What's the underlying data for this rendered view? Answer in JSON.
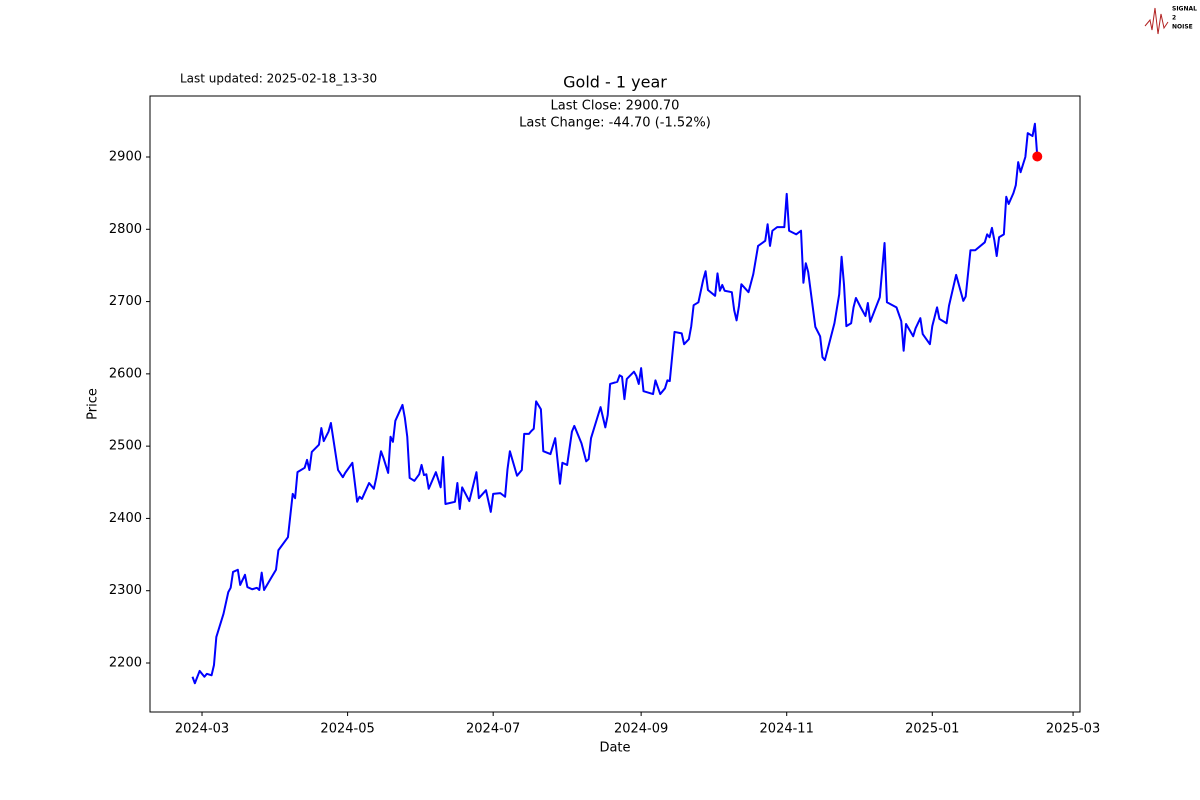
{
  "chart_data": {
    "type": "line",
    "title": "Gold - 1 year",
    "updated": "Last updated: 2025-02-18_13-30",
    "annotations": [
      "Last Close: 2900.70",
      "Last Change: -44.70 (-1.52%)"
    ],
    "logo": [
      "SIGNAL",
      "2",
      "NOISE"
    ],
    "xlabel": "Date",
    "ylabel": "Price",
    "color": "#0000ff",
    "last_point_color": "#ff0000",
    "xlim": [
      -21.8,
      367.9
    ],
    "ylim": [
      2132.2,
      2984.4
    ],
    "xticks": [
      {
        "value": 0,
        "label": "2024-03"
      },
      {
        "value": 61,
        "label": "2024-05"
      },
      {
        "value": 122,
        "label": "2024-07"
      },
      {
        "value": 184,
        "label": "2024-09"
      },
      {
        "value": 245,
        "label": "2024-11"
      },
      {
        "value": 306,
        "label": "2025-01"
      },
      {
        "value": 365,
        "label": "2025-03"
      }
    ],
    "yticks": [
      2200,
      2300,
      2400,
      2500,
      2600,
      2700,
      2800,
      2900
    ],
    "x": [
      -4,
      -3,
      -1,
      1,
      2,
      4,
      5,
      6,
      9,
      11,
      12,
      13,
      15,
      16,
      18,
      19,
      21,
      23,
      24,
      25,
      26,
      29,
      31,
      32,
      36,
      38,
      39,
      40,
      43,
      44,
      45,
      46,
      49,
      50,
      51,
      53,
      54,
      57,
      59,
      60,
      63,
      65,
      66,
      67,
      70,
      72,
      73,
      75,
      76,
      78,
      79,
      80,
      81,
      84,
      85,
      86,
      87,
      89,
      91,
      92,
      93,
      94,
      95,
      98,
      100,
      101,
      102,
      106,
      107,
      108,
      109,
      112,
      115,
      116,
      119,
      121,
      122,
      125,
      127,
      128,
      129,
      132,
      134,
      135,
      137,
      138,
      139,
      140,
      142,
      143,
      146,
      148,
      150,
      151,
      153,
      155,
      156,
      159,
      161,
      162,
      163,
      167,
      169,
      170,
      171,
      174,
      175,
      176,
      177,
      178,
      181,
      182,
      183,
      184,
      185,
      189,
      190,
      192,
      194,
      195,
      196,
      198,
      201,
      202,
      204,
      205,
      206,
      208,
      210,
      211,
      212,
      215,
      216,
      217,
      218,
      219,
      222,
      223,
      224,
      225,
      226,
      229,
      231,
      233,
      236,
      237,
      238,
      239,
      241,
      244,
      245,
      246,
      249,
      251,
      252,
      253,
      254,
      257,
      259,
      260,
      261,
      265,
      267,
      268,
      269,
      270,
      272,
      273,
      274,
      276,
      278,
      279,
      280,
      284,
      286,
      287,
      291,
      293,
      294,
      295,
      298,
      299,
      301,
      302,
      305,
      306,
      308,
      309,
      312,
      313,
      316,
      319,
      320,
      322,
      324,
      328,
      329,
      330,
      331,
      332,
      333,
      334,
      336,
      337,
      338,
      340,
      341,
      342,
      343,
      345,
      346,
      348,
      349,
      350
    ],
    "values": [
      2181,
      2172,
      2189,
      2181,
      2185,
      2183,
      2197,
      2236,
      2268,
      2298,
      2304,
      2326,
      2329,
      2308,
      2322,
      2305,
      2302,
      2304,
      2301,
      2325,
      2301,
      2318,
      2329,
      2356,
      2374,
      2434,
      2428,
      2464,
      2470,
      2481,
      2467,
      2492,
      2502,
      2525,
      2507,
      2520,
      2532,
      2467,
      2457,
      2463,
      2477,
      2423,
      2430,
      2427,
      2449,
      2441,
      2456,
      2493,
      2484,
      2463,
      2513,
      2506,
      2535,
      2557,
      2539,
      2513,
      2456,
      2452,
      2461,
      2474,
      2460,
      2461,
      2441,
      2464,
      2443,
      2485,
      2420,
      2423,
      2449,
      2413,
      2443,
      2424,
      2464,
      2428,
      2439,
      2409,
      2434,
      2435,
      2430,
      2468,
      2493,
      2459,
      2467,
      2517,
      2517,
      2521,
      2524,
      2562,
      2551,
      2493,
      2489,
      2511,
      2448,
      2477,
      2474,
      2520,
      2528,
      2504,
      2479,
      2482,
      2511,
      2554,
      2526,
      2543,
      2586,
      2589,
      2598,
      2596,
      2565,
      2593,
      2603,
      2597,
      2586,
      2608,
      2576,
      2572,
      2591,
      2572,
      2580,
      2591,
      2590,
      2658,
      2656,
      2641,
      2648,
      2666,
      2695,
      2699,
      2730,
      2742,
      2716,
      2708,
      2739,
      2715,
      2723,
      2715,
      2713,
      2688,
      2674,
      2694,
      2724,
      2713,
      2738,
      2777,
      2784,
      2807,
      2777,
      2798,
      2803,
      2803,
      2849,
      2798,
      2793,
      2798,
      2726,
      2753,
      2741,
      2665,
      2652,
      2623,
      2619,
      2670,
      2710,
      2762,
      2724,
      2666,
      2670,
      2692,
      2705,
      2692,
      2680,
      2698,
      2672,
      2706,
      2781,
      2699,
      2692,
      2673,
      2632,
      2669,
      2652,
      2663,
      2677,
      2655,
      2641,
      2666,
      2692,
      2676,
      2670,
      2694,
      2737,
      2701,
      2707,
      2771,
      2771,
      2782,
      2793,
      2789,
      2802,
      2785,
      2763,
      2789,
      2793,
      2845,
      2835,
      2850,
      2861,
      2893,
      2879,
      2900,
      2933,
      2929,
      2946,
      2900.7
    ]
  }
}
